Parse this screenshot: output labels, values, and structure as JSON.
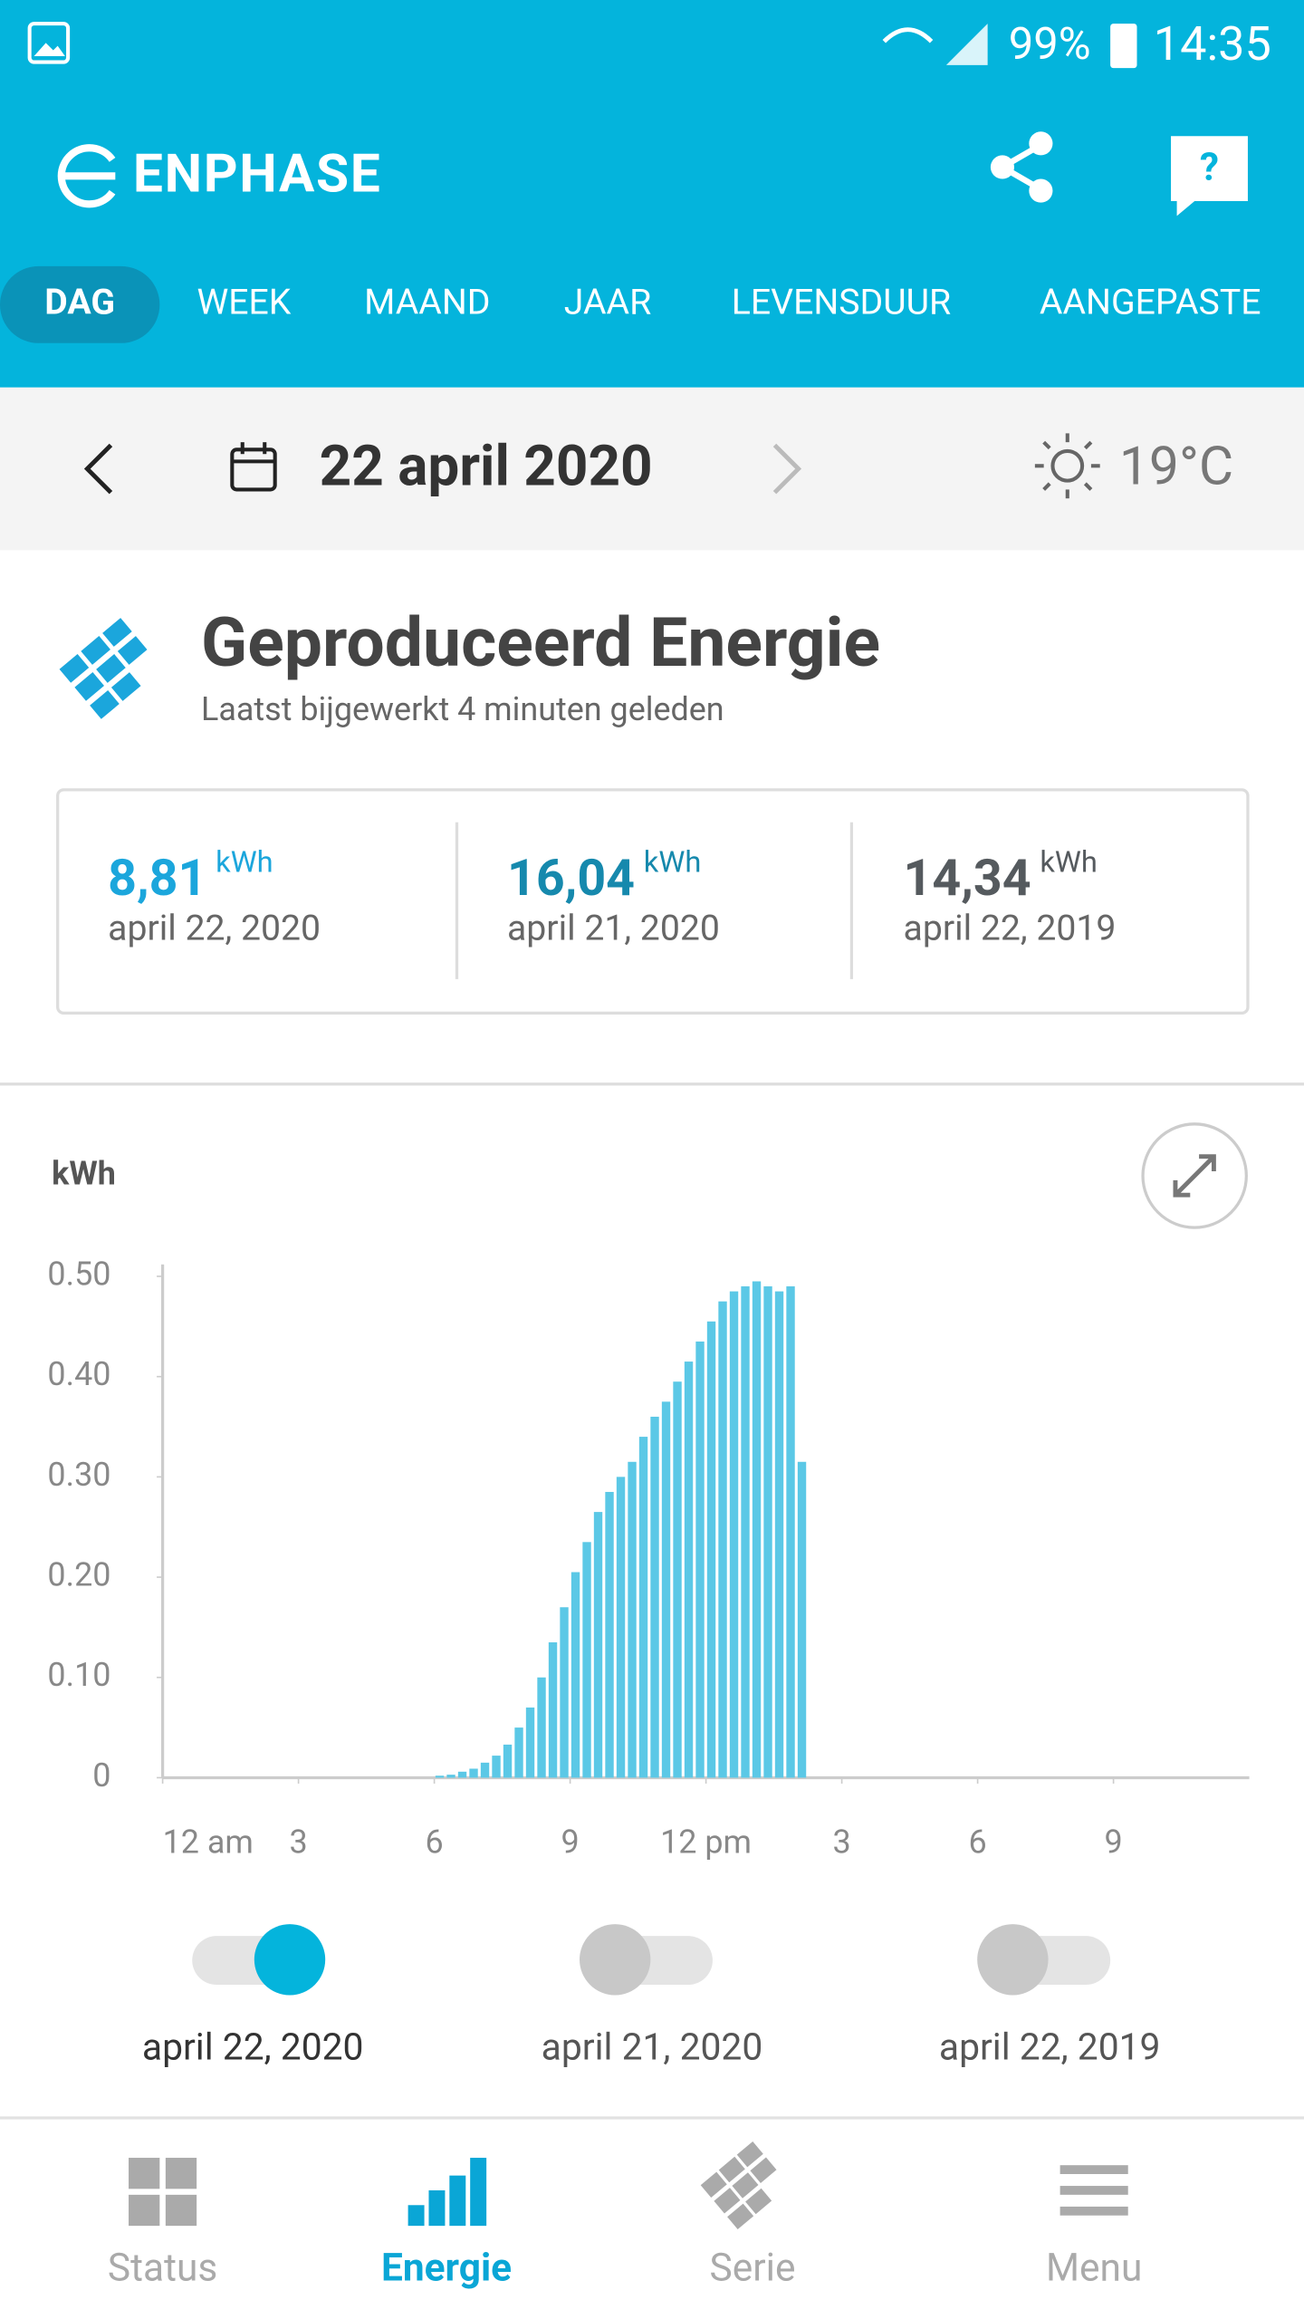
{
  "status_bar": {
    "battery": "99%",
    "time": "14:35"
  },
  "header": {
    "brand": "ENPHASE"
  },
  "tabs": [
    "DAG",
    "WEEK",
    "MAAND",
    "JAAR",
    "LEVENSDUUR",
    "AANGEPASTE"
  ],
  "date_bar": {
    "date": "22 april 2020",
    "temperature": "19°C"
  },
  "section": {
    "title": "Geproduceerd Energie",
    "subtitle": "Laatst bijgewerkt 4 minuten geleden"
  },
  "summary": [
    {
      "value": "8,81",
      "unit": "kWh",
      "date": "april 22, 2020",
      "color": "#1ba6dc"
    },
    {
      "value": "16,04",
      "unit": "kWh",
      "date": "april 21, 2020",
      "color": "#1689ad"
    },
    {
      "value": "14,34",
      "unit": "kWh",
      "date": "april 22, 2019",
      "color": "#555a5e"
    }
  ],
  "chart_data": {
    "type": "bar",
    "y_label": "kWh",
    "color": "#5bc8e6",
    "x": [
      6,
      6.25,
      6.5,
      6.75,
      7,
      7.25,
      7.5,
      7.75,
      8,
      8.25,
      8.5,
      8.75,
      9,
      9.25,
      9.5,
      9.75,
      10,
      10.25,
      10.5,
      10.75,
      11,
      11.25,
      11.5,
      11.75,
      12,
      12.25,
      12.5,
      12.75,
      13,
      13.25,
      13.5,
      13.75,
      14
    ],
    "values": [
      0.002,
      0.003,
      0.006,
      0.009,
      0.015,
      0.022,
      0.033,
      0.05,
      0.07,
      0.1,
      0.135,
      0.17,
      0.205,
      0.235,
      0.265,
      0.285,
      0.3,
      0.315,
      0.34,
      0.36,
      0.375,
      0.395,
      0.415,
      0.435,
      0.455,
      0.475,
      0.485,
      0.49,
      0.495,
      0.49,
      0.485,
      0.49,
      0.315
    ],
    "xlim": [
      0,
      24
    ],
    "xticks": [
      {
        "value": 0,
        "label": "12 am"
      },
      3,
      6,
      9,
      {
        "value": 12,
        "label": "12 pm"
      },
      {
        "value": 15,
        "label": "3"
      },
      {
        "value": 18,
        "label": "6"
      },
      {
        "value": 21,
        "label": "9"
      }
    ],
    "ylim": [
      0,
      0.5
    ],
    "yticks": [
      0,
      {
        "value": 0.1,
        "label": "0.10"
      },
      {
        "value": 0.2,
        "label": "0.20"
      },
      {
        "value": 0.3,
        "label": "0.30"
      },
      {
        "value": 0.4,
        "label": "0.40"
      },
      {
        "value": 0.5,
        "label": "0.50"
      }
    ]
  },
  "toggles": [
    {
      "label": "april 22, 2020",
      "on": true
    },
    {
      "label": "april 21, 2020",
      "on": false
    },
    {
      "label": "april 22, 2019",
      "on": false
    }
  ],
  "nav": [
    {
      "label": "Status",
      "active": false
    },
    {
      "label": "Energie",
      "active": true
    },
    {
      "label": "Serie",
      "active": false
    },
    {
      "label": "Menu",
      "active": false
    }
  ]
}
